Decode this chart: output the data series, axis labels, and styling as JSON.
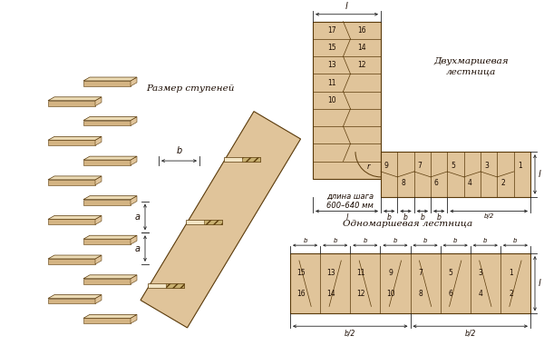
{
  "fill_tan": "#d4b483",
  "fill_tan_light": "#e0c49a",
  "fill_tan_lighter": "#ecdbb5",
  "fill_cream": "#f2e4c4",
  "edge_dark": "#5a3a0a",
  "edge_mid": "#8b6020",
  "text_dark": "#1a0a00",
  "dim_color": "#222222",
  "bg": "#ffffff",
  "title_two": "Двухмаршевая\nлестница",
  "title_one": "Одномаршевая лестница",
  "title_size": "Размер ступеней",
  "label_step": "длина шага\n600–640 мм"
}
